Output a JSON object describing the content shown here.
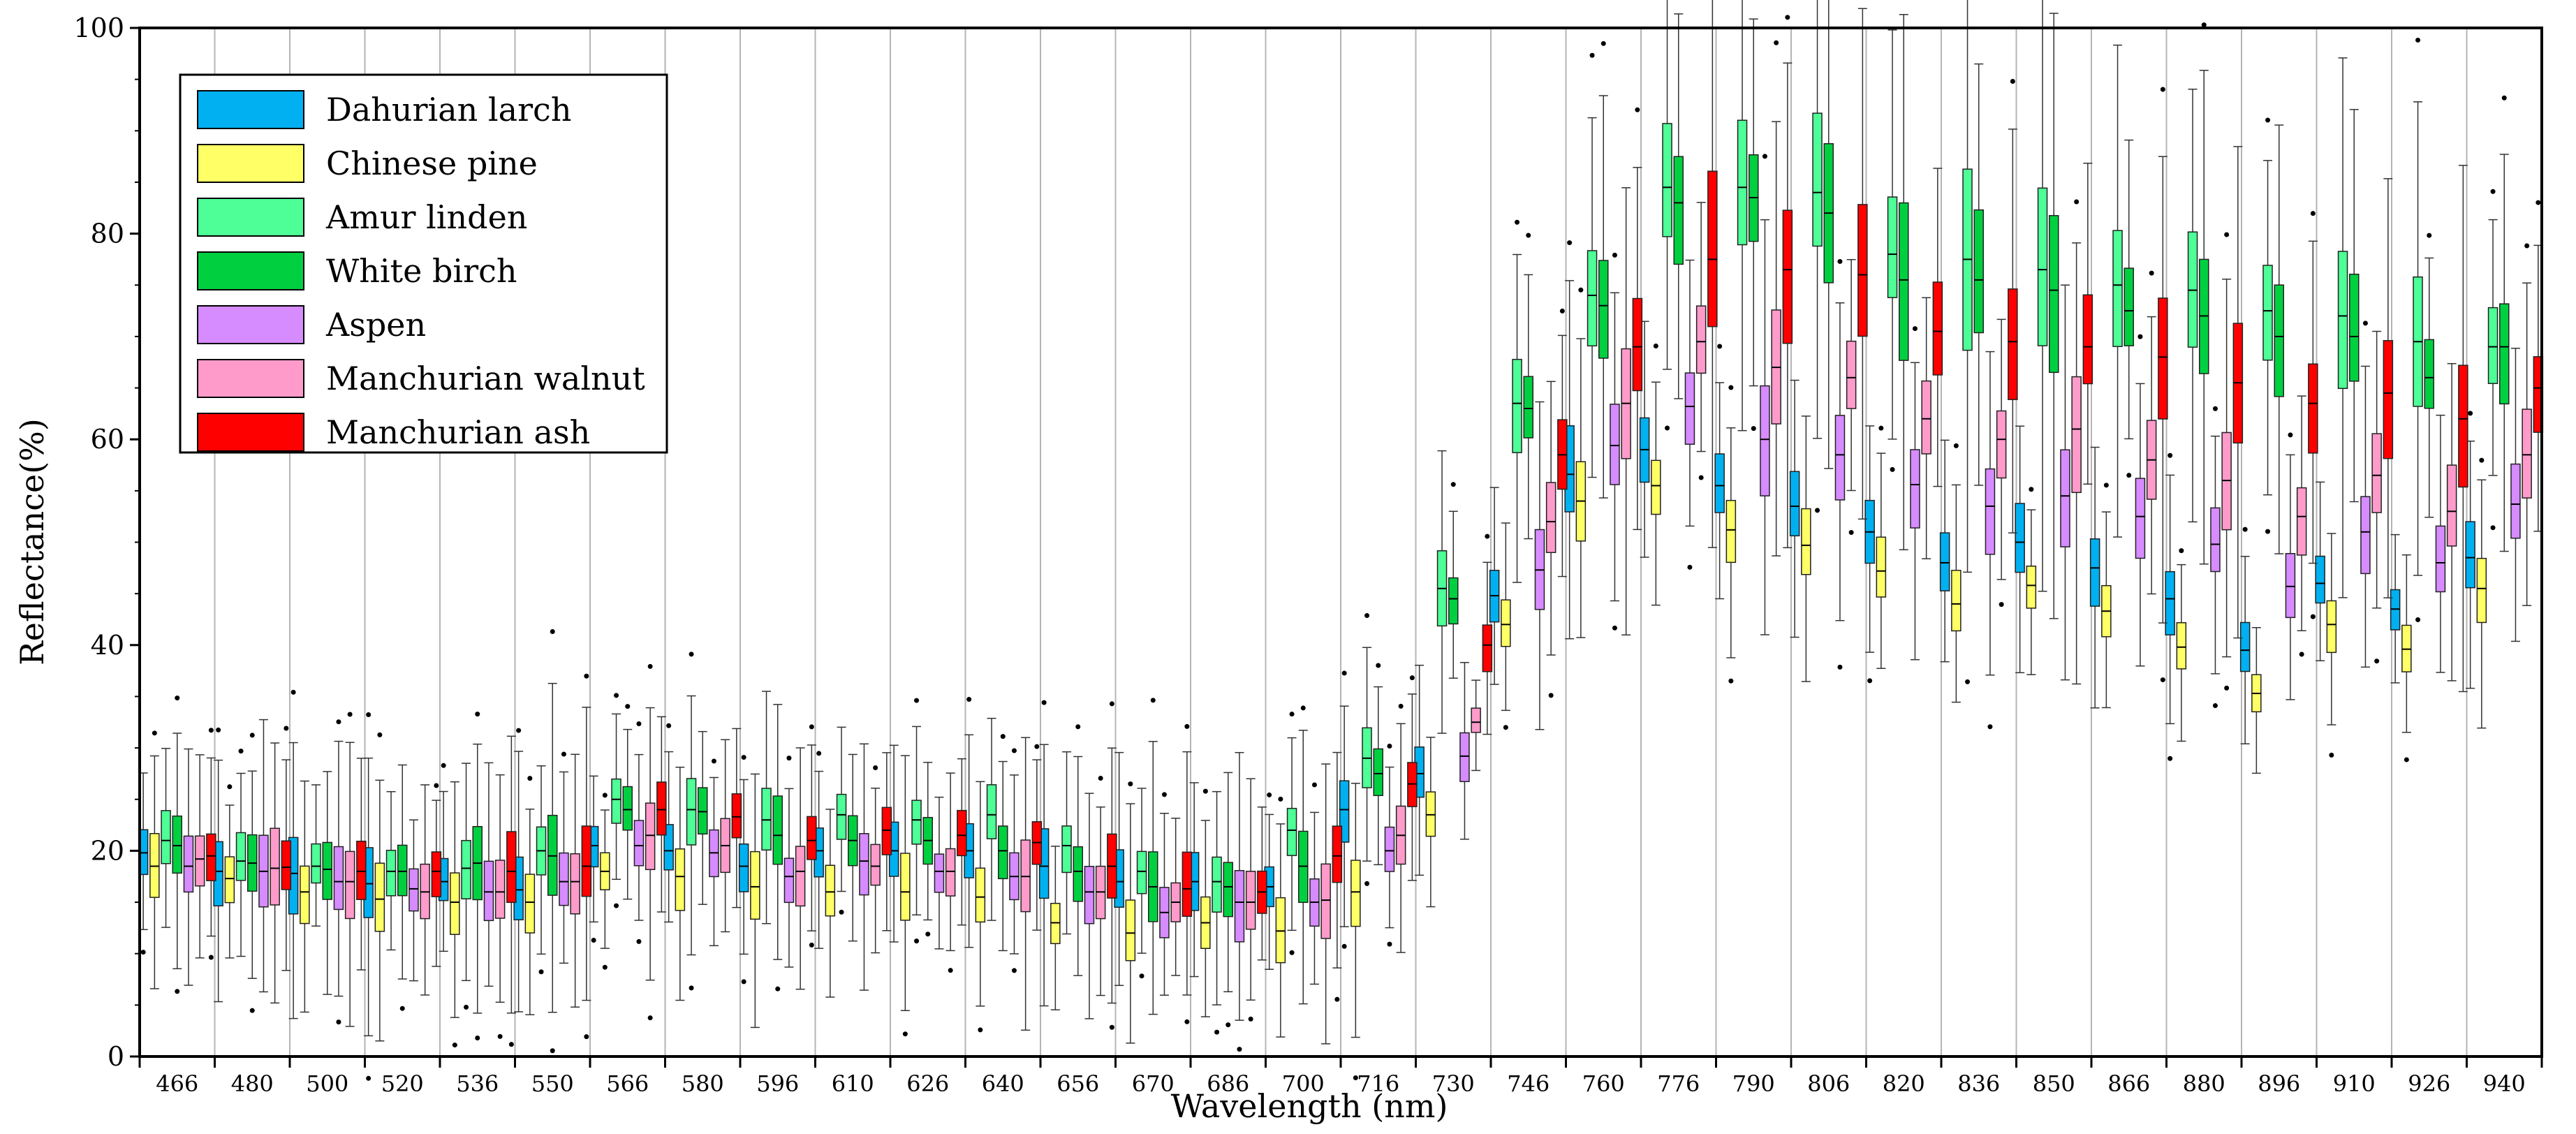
{
  "chart_data": {
    "type": "boxplot",
    "xlabel": "Wavelength  (nm)",
    "ylabel": "Reflectance(%)",
    "ylim": [
      0,
      100
    ],
    "yticks": [
      0,
      20,
      40,
      60,
      80,
      100
    ],
    "grid": "vertical lines between wavelength groups",
    "legend_position": "top-left",
    "categories": [
      "466",
      "480",
      "500",
      "520",
      "536",
      "550",
      "566",
      "580",
      "596",
      "610",
      "626",
      "640",
      "656",
      "670",
      "686",
      "700",
      "716",
      "730",
      "746",
      "760",
      "776",
      "790",
      "806",
      "820",
      "836",
      "850",
      "866",
      "880",
      "896",
      "910",
      "926",
      "940"
    ],
    "series": [
      {
        "name": "Dahurian larch",
        "color": "#00B0F0",
        "medians": [
          19.8,
          18.0,
          17.8,
          16.8,
          17.0,
          16.2,
          20.5,
          20.0,
          18.5,
          20.0,
          20.0,
          20.0,
          18.5,
          17.0,
          17.0,
          16.5,
          24.0,
          27.5,
          44.8,
          56.6,
          59.0,
          55.5,
          53.5,
          51.0,
          48.0,
          50.0,
          47.5,
          44.5,
          39.5,
          46.0,
          43.5,
          48.5
        ]
      },
      {
        "name": "Chinese pine",
        "color": "#FFFF66",
        "medians": [
          18.5,
          17.3,
          16.0,
          15.3,
          15.0,
          15.0,
          18.0,
          17.5,
          16.5,
          16.0,
          16.0,
          15.5,
          13.0,
          12.0,
          13.0,
          12.2,
          16.0,
          23.5,
          42.0,
          54.0,
          55.5,
          51.2,
          49.7,
          47.2,
          44.0,
          45.8,
          43.3,
          39.8,
          35.3,
          42.0,
          39.6,
          45.5
        ]
      },
      {
        "name": "Amur linden",
        "color": "#4DFF96",
        "medians": [
          21.0,
          19.0,
          18.5,
          18.0,
          18.3,
          20.0,
          25.0,
          24.0,
          23.0,
          23.5,
          23.0,
          23.5,
          20.5,
          18.0,
          17.0,
          22.0,
          29.0,
          45.5,
          63.5,
          74.0,
          84.5,
          84.5,
          84.0,
          78.0,
          77.5,
          76.5,
          75.0,
          74.5,
          72.5,
          72.0,
          69.5,
          69.0
        ]
      },
      {
        "name": "White birch",
        "color": "#00D040",
        "medians": [
          20.5,
          18.8,
          18.2,
          18.0,
          18.8,
          19.5,
          24.0,
          23.8,
          21.5,
          21.0,
          21.0,
          20.0,
          18.0,
          16.5,
          16.5,
          18.5,
          27.5,
          44.5,
          63.0,
          73.0,
          83.0,
          83.5,
          82.0,
          75.5,
          75.5,
          74.5,
          72.5,
          72.0,
          70.0,
          70.0,
          66.0,
          69.0
        ]
      },
      {
        "name": "Aspen",
        "color": "#D68BFF",
        "medians": [
          18.5,
          18.0,
          17.0,
          16.3,
          16.0,
          17.0,
          20.5,
          19.8,
          17.5,
          19.0,
          18.0,
          17.5,
          16.0,
          14.0,
          15.0,
          15.0,
          20.0,
          29.2,
          47.3,
          59.4,
          63.2,
          60.0,
          58.5,
          55.6,
          53.5,
          54.5,
          52.5,
          49.8,
          45.7,
          51.0,
          48.0,
          53.7
        ]
      },
      {
        "name": "Manchurian walnut",
        "color": "#FF9BCB",
        "medians": [
          19.2,
          18.3,
          17.0,
          16.0,
          16.0,
          17.0,
          21.5,
          20.5,
          18.0,
          18.5,
          18.0,
          17.5,
          16.0,
          15.0,
          15.0,
          15.2,
          21.5,
          32.5,
          52.0,
          63.5,
          69.5,
          67.0,
          66.0,
          62.0,
          60.0,
          61.0,
          58.0,
          56.0,
          52.5,
          56.5,
          53.0,
          58.5
        ]
      },
      {
        "name": "Manchurian ash",
        "color": "#FF0000",
        "medians": [
          19.5,
          18.4,
          18.0,
          18.0,
          18.0,
          18.5,
          24.0,
          23.3,
          21.0,
          22.0,
          21.5,
          20.8,
          18.5,
          16.3,
          16.0,
          19.5,
          26.5,
          40.0,
          58.5,
          69.0,
          77.5,
          76.5,
          76.0,
          70.5,
          69.5,
          69.0,
          68.0,
          65.5,
          63.5,
          64.5,
          62.0,
          65.0
        ]
      }
    ]
  }
}
